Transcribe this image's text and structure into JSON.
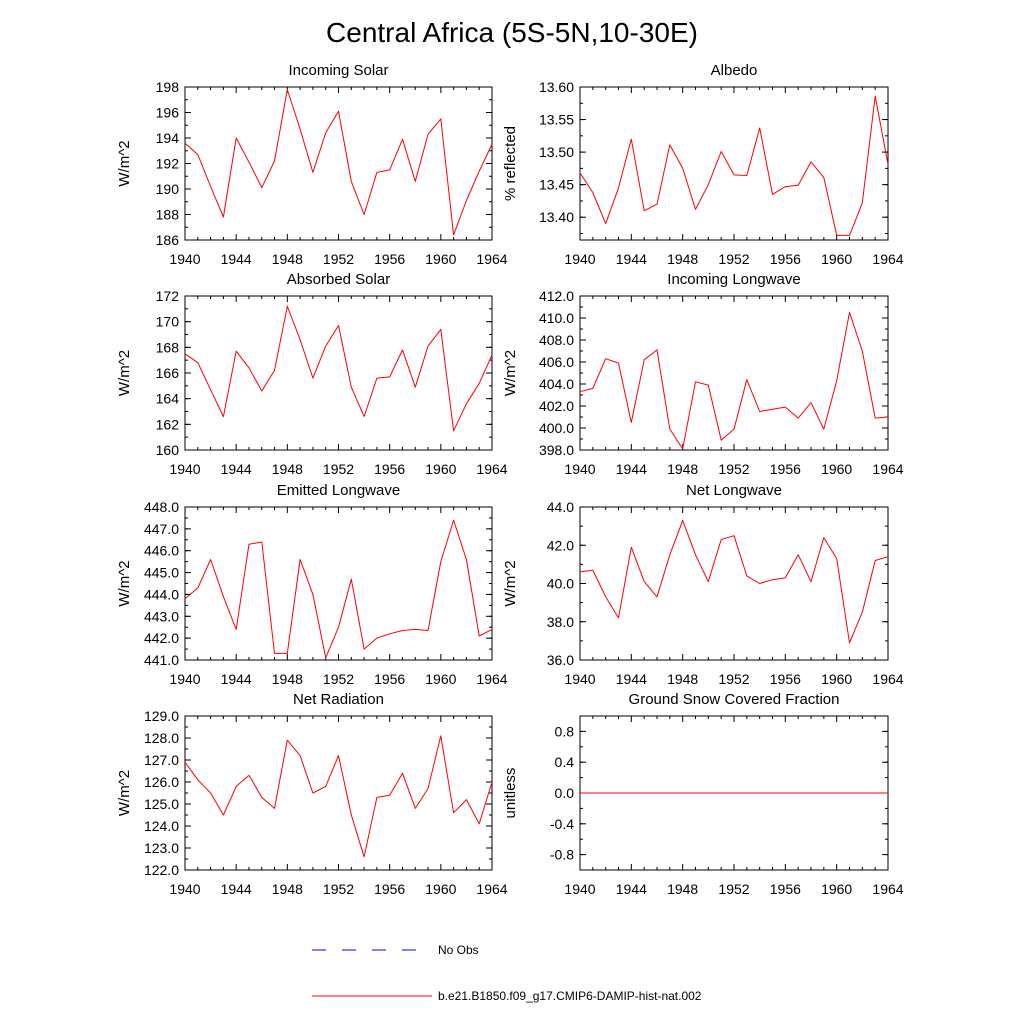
{
  "figure": {
    "title": "Central Africa (5S-5N,10-30E)"
  },
  "chart_data": [
    {
      "type": "line",
      "title": "Incoming Solar",
      "xlabel": "",
      "ylabel": "W/m^2",
      "xlim": [
        1940,
        1964
      ],
      "ylim": [
        186,
        198
      ],
      "yticks": [
        186,
        188,
        190,
        192,
        194,
        196,
        198
      ],
      "ytick_labels": [
        "186",
        "188",
        "190",
        "192",
        "194",
        "196",
        "198"
      ],
      "x": [
        1940,
        1941,
        1942,
        1943,
        1944,
        1945,
        1946,
        1947,
        1948,
        1949,
        1950,
        1951,
        1952,
        1953,
        1954,
        1955,
        1956,
        1957,
        1958,
        1959,
        1960,
        1961,
        1962,
        1963,
        1964
      ],
      "series": [
        {
          "name": "b.e21.B1850.f09_g17.CMIP6-DAMIP-hist-nat.002",
          "color": "#ff0000",
          "values": [
            193.6,
            192.7,
            190.2,
            187.8,
            194.0,
            192.1,
            190.1,
            192.2,
            197.8,
            194.7,
            191.3,
            194.4,
            196.1,
            190.6,
            188.0,
            191.3,
            191.5,
            193.9,
            190.6,
            194.3,
            195.5,
            186.4,
            189.1,
            191.4,
            193.5
          ]
        }
      ]
    },
    {
      "type": "line",
      "title": "Albedo",
      "xlabel": "",
      "ylabel": "% reflected",
      "xlim": [
        1940,
        1964
      ],
      "ylim": [
        13.365,
        13.6
      ],
      "yticks": [
        13.4,
        13.45,
        13.5,
        13.55,
        13.6
      ],
      "ytick_labels": [
        "13.40",
        "13.45",
        "13.50",
        "13.55",
        "13.60"
      ],
      "x": [
        1940,
        1941,
        1942,
        1943,
        1944,
        1945,
        1946,
        1947,
        1948,
        1949,
        1950,
        1951,
        1952,
        1953,
        1954,
        1955,
        1956,
        1957,
        1958,
        1959,
        1960,
        1961,
        1962,
        1963,
        1964
      ],
      "series": [
        {
          "name": "b.e21.B1850.f09_g17.CMIP6-DAMIP-hist-nat.002",
          "color": "#ff0000",
          "values": [
            13.468,
            13.438,
            13.39,
            13.445,
            13.52,
            13.41,
            13.42,
            13.511,
            13.475,
            13.412,
            13.45,
            13.501,
            13.465,
            13.464,
            13.537,
            13.435,
            13.447,
            13.449,
            13.485,
            13.461,
            13.372,
            13.372,
            13.422,
            13.586,
            13.481
          ]
        }
      ]
    },
    {
      "type": "line",
      "title": "Absorbed Solar",
      "xlabel": "",
      "ylabel": "W/m^2",
      "xlim": [
        1940,
        1964
      ],
      "ylim": [
        160,
        172
      ],
      "yticks": [
        160,
        162,
        164,
        166,
        168,
        170,
        172
      ],
      "ytick_labels": [
        "160",
        "162",
        "164",
        "166",
        "168",
        "170",
        "172"
      ],
      "x": [
        1940,
        1941,
        1942,
        1943,
        1944,
        1945,
        1946,
        1947,
        1948,
        1949,
        1950,
        1951,
        1952,
        1953,
        1954,
        1955,
        1956,
        1957,
        1958,
        1959,
        1960,
        1961,
        1962,
        1963,
        1964
      ],
      "series": [
        {
          "name": "b.e21.B1850.f09_g17.CMIP6-DAMIP-hist-nat.002",
          "color": "#ff0000",
          "values": [
            167.5,
            166.8,
            164.7,
            162.6,
            167.7,
            166.4,
            164.6,
            166.2,
            171.2,
            168.6,
            165.6,
            168.1,
            169.7,
            164.9,
            162.6,
            165.6,
            165.7,
            167.8,
            164.9,
            168.1,
            169.4,
            161.5,
            163.6,
            165.2,
            167.4
          ]
        }
      ]
    },
    {
      "type": "line",
      "title": "Incoming Longwave",
      "xlabel": "",
      "ylabel": "W/m^2",
      "xlim": [
        1940,
        1964
      ],
      "ylim": [
        398,
        412
      ],
      "yticks": [
        398,
        400,
        402,
        404,
        406,
        408,
        410,
        412
      ],
      "ytick_labels": [
        "398.0",
        "400.0",
        "402.0",
        "404.0",
        "406.0",
        "408.0",
        "410.0",
        "412.0"
      ],
      "x": [
        1940,
        1941,
        1942,
        1943,
        1944,
        1945,
        1946,
        1947,
        1948,
        1949,
        1950,
        1951,
        1952,
        1953,
        1954,
        1955,
        1956,
        1957,
        1958,
        1959,
        1960,
        1961,
        1962,
        1963,
        1964
      ],
      "series": [
        {
          "name": "b.e21.B1850.f09_g17.CMIP6-DAMIP-hist-nat.002",
          "color": "#ff0000",
          "values": [
            403.3,
            403.6,
            406.3,
            405.9,
            400.5,
            406.2,
            407.1,
            399.9,
            398.1,
            404.2,
            403.9,
            398.9,
            399.9,
            404.4,
            401.5,
            401.7,
            401.9,
            400.9,
            402.3,
            399.9,
            404.3,
            410.5,
            407.0,
            400.9,
            401.0
          ]
        }
      ]
    },
    {
      "type": "line",
      "title": "Emitted Longwave",
      "xlabel": "",
      "ylabel": "W/m^2",
      "xlim": [
        1940,
        1964
      ],
      "ylim": [
        441,
        448
      ],
      "yticks": [
        441,
        442,
        443,
        444,
        445,
        446,
        447,
        448
      ],
      "ytick_labels": [
        "441.0",
        "442.0",
        "443.0",
        "444.0",
        "445.0",
        "446.0",
        "447.0",
        "448.0"
      ],
      "x": [
        1940,
        1941,
        1942,
        1943,
        1944,
        1945,
        1946,
        1947,
        1948,
        1949,
        1950,
        1951,
        1952,
        1953,
        1954,
        1955,
        1956,
        1957,
        1958,
        1959,
        1960,
        1961,
        1962,
        1963,
        1964
      ],
      "series": [
        {
          "name": "b.e21.B1850.f09_g17.CMIP6-DAMIP-hist-nat.002",
          "color": "#ff0000",
          "values": [
            443.8,
            444.3,
            445.6,
            443.9,
            442.4,
            446.3,
            446.4,
            441.3,
            441.3,
            445.6,
            444.0,
            441.1,
            442.5,
            444.7,
            441.5,
            442.0,
            442.2,
            442.35,
            442.4,
            442.35,
            445.5,
            447.4,
            445.6,
            442.1,
            442.4
          ]
        }
      ]
    },
    {
      "type": "line",
      "title": "Net Longwave",
      "xlabel": "",
      "ylabel": "W/m^2",
      "xlim": [
        1940,
        1964
      ],
      "ylim": [
        36,
        44
      ],
      "yticks": [
        36,
        38,
        40,
        42,
        44
      ],
      "ytick_labels": [
        "36.0",
        "38.0",
        "40.0",
        "42.0",
        "44.0"
      ],
      "x": [
        1940,
        1941,
        1942,
        1943,
        1944,
        1945,
        1946,
        1947,
        1948,
        1949,
        1950,
        1951,
        1952,
        1953,
        1954,
        1955,
        1956,
        1957,
        1958,
        1959,
        1960,
        1961,
        1962,
        1963,
        1964
      ],
      "series": [
        {
          "name": "b.e21.B1850.f09_g17.CMIP6-DAMIP-hist-nat.002",
          "color": "#ff0000",
          "values": [
            40.6,
            40.7,
            39.3,
            38.2,
            41.9,
            40.1,
            39.3,
            41.5,
            43.3,
            41.5,
            40.1,
            42.3,
            42.5,
            40.4,
            40.0,
            40.2,
            40.3,
            41.5,
            40.1,
            42.4,
            41.3,
            36.9,
            38.5,
            41.2,
            41.4
          ]
        }
      ]
    },
    {
      "type": "line",
      "title": "Net Radiation",
      "xlabel": "",
      "ylabel": "W/m^2",
      "xlim": [
        1940,
        1964
      ],
      "ylim": [
        122,
        129
      ],
      "yticks": [
        122,
        123,
        124,
        125,
        126,
        127,
        128,
        129
      ],
      "ytick_labels": [
        "122.0",
        "123.0",
        "124.0",
        "125.0",
        "126.0",
        "127.0",
        "128.0",
        "129.0"
      ],
      "x": [
        1940,
        1941,
        1942,
        1943,
        1944,
        1945,
        1946,
        1947,
        1948,
        1949,
        1950,
        1951,
        1952,
        1953,
        1954,
        1955,
        1956,
        1957,
        1958,
        1959,
        1960,
        1961,
        1962,
        1963,
        1964
      ],
      "series": [
        {
          "name": "b.e21.B1850.f09_g17.CMIP6-DAMIP-hist-nat.002",
          "color": "#ff0000",
          "values": [
            126.9,
            126.1,
            125.5,
            124.5,
            125.8,
            126.3,
            125.3,
            124.8,
            127.9,
            127.2,
            125.5,
            125.8,
            127.2,
            124.5,
            122.6,
            125.3,
            125.4,
            126.4,
            124.8,
            125.7,
            128.1,
            124.6,
            125.2,
            124.1,
            126.0
          ]
        }
      ]
    },
    {
      "type": "line",
      "title": "Ground Snow Covered Fraction",
      "xlabel": "",
      "ylabel": "unitless",
      "xlim": [
        1940,
        1964
      ],
      "ylim": [
        -1.0,
        1.0
      ],
      "yticks": [
        -0.8,
        -0.4,
        0.0,
        0.4,
        0.8
      ],
      "ytick_labels": [
        "-0.8",
        "-0.4",
        "0.0",
        "0.4",
        "0.8"
      ],
      "x": [
        1940,
        1941,
        1942,
        1943,
        1944,
        1945,
        1946,
        1947,
        1948,
        1949,
        1950,
        1951,
        1952,
        1953,
        1954,
        1955,
        1956,
        1957,
        1958,
        1959,
        1960,
        1961,
        1962,
        1963,
        1964
      ],
      "series": [
        {
          "name": "b.e21.B1850.f09_g17.CMIP6-DAMIP-hist-nat.002",
          "color": "#ff0000",
          "values": [
            0,
            0,
            0,
            0,
            0,
            0,
            0,
            0,
            0,
            0,
            0,
            0,
            0,
            0,
            0,
            0,
            0,
            0,
            0,
            0,
            0,
            0,
            0,
            0,
            0
          ]
        }
      ]
    }
  ],
  "shared": {
    "xticks": [
      1940,
      1944,
      1948,
      1952,
      1956,
      1960,
      1964
    ],
    "xtick_labels": [
      "1940",
      "1944",
      "1948",
      "1952",
      "1956",
      "1960",
      "1964"
    ]
  },
  "legend": {
    "items": [
      {
        "label": "No Obs",
        "color": "#0000ff",
        "style": "dashed"
      },
      {
        "label": "b.e21.B1850.f09_g17.CMIP6-DAMIP-hist-nat.002",
        "color": "#ff0000",
        "style": "solid"
      }
    ]
  }
}
